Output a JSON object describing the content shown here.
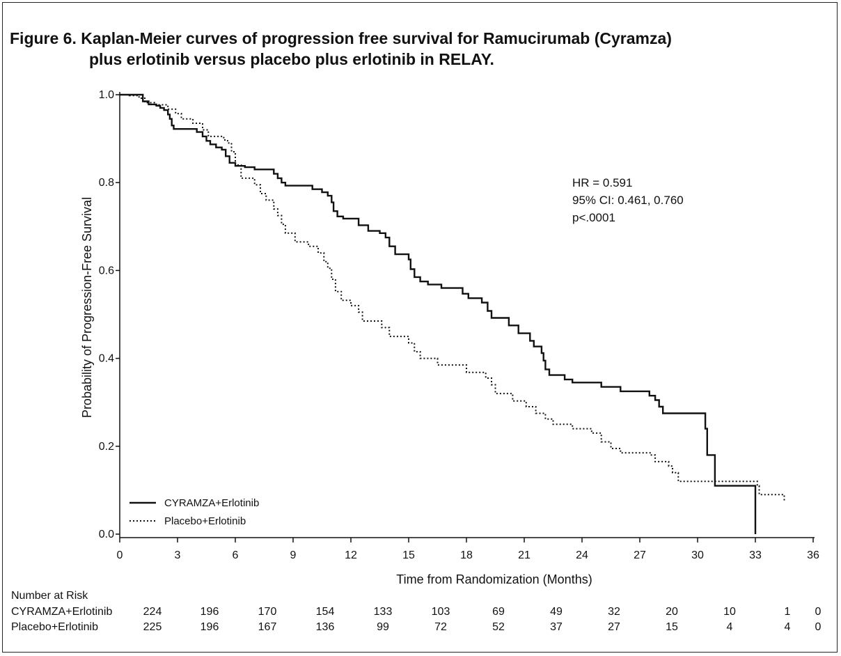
{
  "title_line1": "Figure 6. Kaplan-Meier curves of progression free survival for Ramucirumab (Cyramza)",
  "title_line2": "plus erlotinib versus placebo plus erlotinib in RELAY.",
  "annotations": [
    "HR = 0.591",
    "95% CI: 0.461, 0.760",
    "p<.0001"
  ],
  "risk_table": {
    "header": "Number at Risk",
    "timepoints": [
      0,
      3,
      6,
      9,
      12,
      15,
      18,
      21,
      24,
      27,
      30,
      33,
      36
    ],
    "rows": [
      {
        "label": "CYRAMZA+Erlotinib",
        "values": [
          224,
          196,
          170,
          154,
          133,
          103,
          69,
          49,
          32,
          20,
          10,
          1,
          0
        ]
      },
      {
        "label": "Placebo+Erlotinib",
        "values": [
          225,
          196,
          167,
          136,
          99,
          72,
          52,
          37,
          27,
          15,
          4,
          4,
          0
        ]
      }
    ]
  },
  "chart_data": {
    "type": "line",
    "xlabel": "Time from Randomization (Months)",
    "ylabel": "Probability of Progression-Free Survival",
    "xlim": [
      0,
      36
    ],
    "ylim": [
      0,
      1.0
    ],
    "xticks": [
      0,
      3,
      6,
      9,
      12,
      15,
      18,
      21,
      24,
      27,
      30,
      33,
      36
    ],
    "yticks": [
      0.0,
      0.2,
      0.4,
      0.6,
      0.8,
      1.0
    ],
    "ytick_labels": [
      "0.0",
      "0.2",
      "0.4",
      "0.6",
      "0.8",
      "1.0"
    ],
    "step": true,
    "grid": false,
    "legend_position": "bottom-left",
    "series": [
      {
        "name": "CYRAMZA+Erlotinib",
        "style": "solid",
        "color": "#111111",
        "x": [
          0,
          1.2,
          1.5,
          1.9,
          2.1,
          2.3,
          2.5,
          2.6,
          2.7,
          2.8,
          3.0,
          3.4,
          4.0,
          4.3,
          4.5,
          4.7,
          5.0,
          5.3,
          5.5,
          5.7,
          6.0,
          6.5,
          7.0,
          8.0,
          8.2,
          8.4,
          8.6,
          9.0,
          10.0,
          10.5,
          10.8,
          11.0,
          11.1,
          11.3,
          11.6,
          12.2,
          12.4,
          12.9,
          13.5,
          13.8,
          14.0,
          14.3,
          15.0,
          15.1,
          15.3,
          15.6,
          16.0,
          16.7,
          17.8,
          18.1,
          18.8,
          19.1,
          19.3,
          20.2,
          20.7,
          21.3,
          21.5,
          21.9,
          22.0,
          22.1,
          22.3,
          23.1,
          23.5,
          25.0,
          26.0,
          27.5,
          27.8,
          28.0,
          28.2,
          30.4,
          30.5,
          30.9,
          33.0
        ],
        "y": [
          1.0,
          0.985,
          0.978,
          0.975,
          0.97,
          0.965,
          0.955,
          0.945,
          0.93,
          0.922,
          0.922,
          0.922,
          0.915,
          0.905,
          0.895,
          0.887,
          0.88,
          0.875,
          0.86,
          0.845,
          0.838,
          0.835,
          0.83,
          0.82,
          0.81,
          0.8,
          0.793,
          0.793,
          0.785,
          0.778,
          0.77,
          0.755,
          0.735,
          0.723,
          0.718,
          0.718,
          0.703,
          0.69,
          0.685,
          0.675,
          0.655,
          0.637,
          0.625,
          0.603,
          0.585,
          0.575,
          0.568,
          0.56,
          0.547,
          0.537,
          0.527,
          0.508,
          0.492,
          0.475,
          0.457,
          0.44,
          0.427,
          0.412,
          0.395,
          0.375,
          0.362,
          0.352,
          0.345,
          0.335,
          0.325,
          0.315,
          0.305,
          0.29,
          0.275,
          0.24,
          0.18,
          0.11,
          0.0
        ]
      },
      {
        "name": "Placebo+Erlotinib",
        "style": "dotted",
        "color": "#111111",
        "x": [
          0,
          0.5,
          1.0,
          1.3,
          1.8,
          2.5,
          2.9,
          3.2,
          3.8,
          4.3,
          4.6,
          5.4,
          5.6,
          5.8,
          6.0,
          6.3,
          7.0,
          7.3,
          7.6,
          8.0,
          8.2,
          8.4,
          8.6,
          9.1,
          9.8,
          10.3,
          10.6,
          10.8,
          11.0,
          11.2,
          11.5,
          12.0,
          12.4,
          12.6,
          13.6,
          14.0,
          15.0,
          15.3,
          15.6,
          16.5,
          18.0,
          19.0,
          19.3,
          19.5,
          20.4,
          21.1,
          21.6,
          22.1,
          22.5,
          23.5,
          24.5,
          25.0,
          25.5,
          26.0,
          27.6,
          27.8,
          28.5,
          28.7,
          29.0,
          33.1,
          33.2,
          34.5
        ],
        "y": [
          1.0,
          0.998,
          0.992,
          0.982,
          0.977,
          0.967,
          0.957,
          0.945,
          0.935,
          0.92,
          0.905,
          0.897,
          0.89,
          0.87,
          0.84,
          0.81,
          0.795,
          0.775,
          0.76,
          0.74,
          0.725,
          0.705,
          0.685,
          0.665,
          0.655,
          0.64,
          0.62,
          0.605,
          0.58,
          0.552,
          0.532,
          0.52,
          0.505,
          0.485,
          0.47,
          0.45,
          0.435,
          0.415,
          0.4,
          0.385,
          0.368,
          0.355,
          0.34,
          0.32,
          0.303,
          0.29,
          0.275,
          0.262,
          0.25,
          0.24,
          0.23,
          0.21,
          0.195,
          0.185,
          0.18,
          0.165,
          0.155,
          0.14,
          0.12,
          0.11,
          0.09,
          0.075
        ]
      }
    ]
  }
}
